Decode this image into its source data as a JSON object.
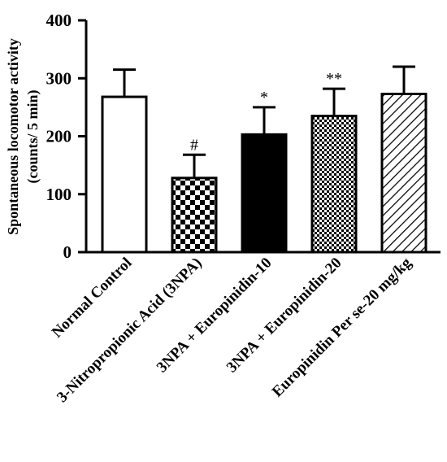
{
  "chart_data": {
    "type": "bar",
    "title": "",
    "xlabel": "",
    "ylabel_lines": [
      "Spontaneous locomotor activity",
      "(counts/ 5 min)"
    ],
    "ylim": [
      0,
      400
    ],
    "yticks": [
      0,
      100,
      200,
      300,
      400
    ],
    "categories": [
      "Normal Control",
      "3-Nitropropionic Acid (3NPA)",
      "3NPA + Europinidin-10",
      "3NPA + Europinidin-20",
      "Europinidin Per se-20 mg/kg"
    ],
    "values": [
      268,
      128,
      203,
      235,
      273
    ],
    "errors": [
      47,
      40,
      47,
      47,
      47
    ],
    "annotations": [
      "",
      "#",
      "*",
      "**",
      ""
    ],
    "fills": [
      "white",
      "checker-large",
      "solid-black",
      "checker-small",
      "diagonal-hatch"
    ],
    "grid": false
  }
}
